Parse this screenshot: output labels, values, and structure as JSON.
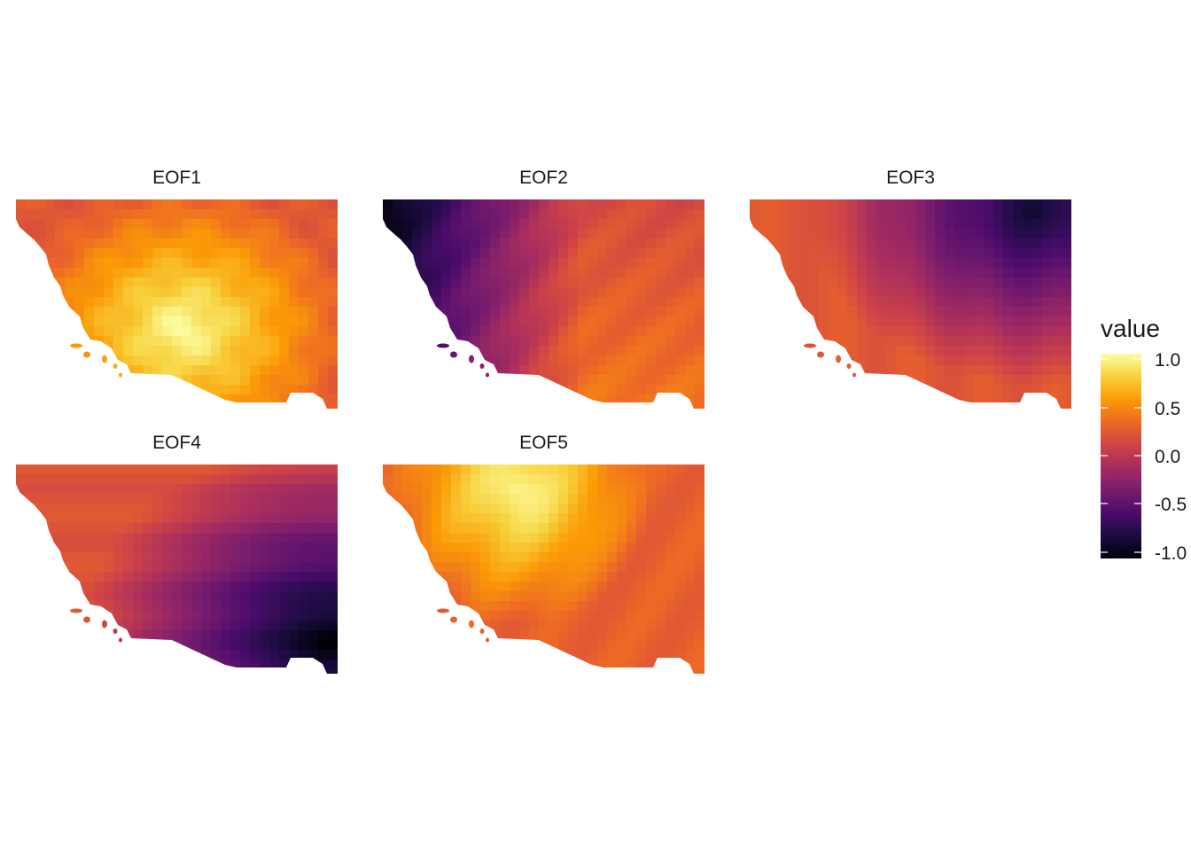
{
  "panels": [
    {
      "title": "EOF1",
      "pattern": "warm-centre"
    },
    {
      "title": "EOF2",
      "pattern": "dark-west"
    },
    {
      "title": "EOF3",
      "pattern": "dark-northeast"
    },
    {
      "title": "EOF4",
      "pattern": "dark-southeast"
    },
    {
      "title": "EOF5",
      "pattern": "warm-north"
    }
  ],
  "legend": {
    "title": "value",
    "ticks": [
      "1.0",
      "0.5",
      "0.0",
      "-0.5",
      "-1.0"
    ],
    "range": [
      -1.0,
      1.0
    ],
    "palette": "inferno",
    "colors": [
      "#000004",
      "#1b0c41",
      "#4a0c6b",
      "#781c6d",
      "#a52c60",
      "#cf4446",
      "#ed6925",
      "#fb9b06",
      "#f7d13d",
      "#fcffa4"
    ]
  }
}
